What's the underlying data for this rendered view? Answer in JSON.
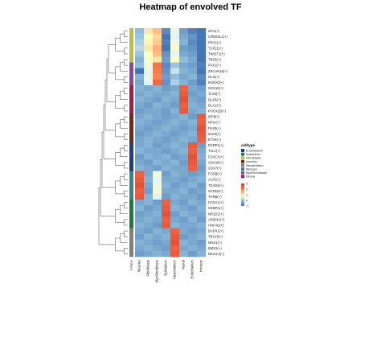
{
  "chart_data": {
    "type": "heatmap",
    "title": "Heatmap of envolved TF",
    "annotation_label": "celltype",
    "columns": [
      "Muscles",
      "Fibroblasts",
      "MyoFibroblasts",
      "Epithelium",
      "Mesothelium",
      "Neural",
      "Endothelium",
      "Immune"
    ],
    "rows": [
      "ZIC1(+)",
      "CREB3L1(+)",
      "PRX1(+)",
      "TCF21(+)",
      "TWIST1(+)",
      "TBX5(+)",
      "PAX1(+)",
      "ZSCAN16(+)",
      "GLI1(+)",
      "RUNX2(+)",
      "SOX10(+)",
      "TLX3(+)",
      "DLX5(+)",
      "DLX1(+)",
      "PHOX2B(+)",
      "IRF8(+)",
      "NFIA(+)",
      "PAX5(+)",
      "ELK3(+)",
      "ETV6(+)",
      "ESRP1(+)",
      "TAL1(+)",
      "FOXC1(+)",
      "SOX18(+)",
      "SOX7(+)",
      "FOSB(+)",
      "ALX1(+)",
      "TEAD3(+)",
      "SATB2(+)",
      "THRB(+)",
      "FOXA1(+)",
      "CEBPA(+)",
      "NR1D1(+)",
      "ARID3A(+)",
      "HNF4G(+)",
      "BARX1(+)",
      "TBX15(+)",
      "MNX1(+)",
      "EMX2(+)",
      "NKX3-2(+)"
    ],
    "row_celltype": [
      "Fibroblasts",
      "Fibroblasts",
      "Fibroblasts",
      "Fibroblasts",
      "Fibroblasts",
      "Fibroblasts",
      "MyoFibroblasts",
      "MyoFibroblasts",
      "MyoFibroblasts",
      "MyoFibroblasts",
      "Neural",
      "Neural",
      "Neural",
      "Neural",
      "Neural",
      "Immune",
      "Immune",
      "Immune",
      "Immune",
      "Immune",
      "Endothelium",
      "Endothelium",
      "Endothelium",
      "Endothelium",
      "Endothelium",
      "Muscles",
      "Muscles",
      "Muscles",
      "Muscles",
      "Muscles",
      "Epithelium",
      "Epithelium",
      "Epithelium",
      "Epithelium",
      "Epithelium",
      "Mesothelium",
      "Mesothelium",
      "Mesothelium",
      "Mesothelium",
      "Mesothelium"
    ],
    "values": [
      [
        -0.3,
        1.2,
        1.5,
        -0.8,
        0.5,
        -0.6,
        -0.9,
        -1.3
      ],
      [
        -0.2,
        1.0,
        1.3,
        -1.1,
        0.3,
        -0.5,
        -0.7,
        -1.2
      ],
      [
        -0.1,
        1.1,
        1.4,
        -0.9,
        0.6,
        -0.4,
        -0.8,
        -1.0
      ],
      [
        0.0,
        1.2,
        1.6,
        -1.2,
        0.8,
        -0.6,
        -0.7,
        -1.1
      ],
      [
        -0.2,
        1.0,
        1.5,
        -0.7,
        0.4,
        -0.5,
        -0.6,
        -1.2
      ],
      [
        -0.4,
        0.9,
        1.2,
        -0.6,
        1.0,
        -0.3,
        -0.5,
        -1.0
      ],
      [
        -0.3,
        0.6,
        2.2,
        -0.8,
        -0.2,
        -0.5,
        -0.6,
        -0.9
      ],
      [
        -1.0,
        0.4,
        2.1,
        -0.7,
        0.1,
        -0.4,
        -0.5,
        -1.2
      ],
      [
        -0.4,
        0.5,
        2.0,
        -0.6,
        -0.3,
        -0.5,
        -0.4,
        -0.8
      ],
      [
        -0.5,
        0.3,
        2.3,
        -0.7,
        -0.1,
        -0.4,
        -0.6,
        -0.9
      ],
      [
        -0.4,
        -0.5,
        -0.4,
        -0.6,
        -0.5,
        2.4,
        -0.5,
        -0.6
      ],
      [
        -0.5,
        -0.4,
        -0.5,
        -0.5,
        -0.4,
        2.5,
        -0.6,
        -0.5
      ],
      [
        -0.4,
        -0.5,
        -0.6,
        -0.4,
        -0.5,
        2.6,
        -0.5,
        -0.6
      ],
      [
        -0.5,
        -0.6,
        -0.4,
        -0.5,
        -0.6,
        2.4,
        -0.4,
        -0.5
      ],
      [
        -0.6,
        -0.5,
        -0.5,
        -0.6,
        -0.4,
        2.5,
        -0.5,
        -0.4
      ],
      [
        -0.5,
        -0.4,
        -0.5,
        -0.6,
        -0.5,
        -0.4,
        -0.6,
        2.5
      ],
      [
        -0.4,
        -0.5,
        -0.6,
        -0.5,
        -0.4,
        -0.5,
        -0.4,
        2.4
      ],
      [
        -0.5,
        -0.6,
        -0.5,
        -0.4,
        -0.5,
        -0.6,
        -0.5,
        2.6
      ],
      [
        -0.6,
        -0.5,
        -0.4,
        -0.5,
        -0.6,
        -0.5,
        -0.4,
        2.5
      ],
      [
        -0.5,
        -0.4,
        -0.5,
        -0.6,
        -0.5,
        -0.4,
        -0.5,
        2.4
      ],
      [
        -0.5,
        -0.4,
        -0.6,
        -0.5,
        -0.4,
        -0.5,
        2.5,
        -0.6
      ],
      [
        -0.4,
        -0.5,
        -0.5,
        -0.6,
        -0.5,
        -0.4,
        2.4,
        -0.5
      ],
      [
        -0.6,
        -0.4,
        -0.5,
        -0.4,
        -0.6,
        -0.5,
        2.6,
        -0.4
      ],
      [
        -0.5,
        -0.6,
        -0.4,
        -0.5,
        -0.4,
        -0.6,
        2.5,
        -0.5
      ],
      [
        -0.4,
        -0.5,
        -0.6,
        -0.4,
        -0.5,
        -0.5,
        2.4,
        -0.6
      ],
      [
        2.4,
        -0.5,
        0.6,
        -0.6,
        -0.4,
        -0.5,
        -0.6,
        -0.5
      ],
      [
        2.5,
        -0.4,
        0.4,
        -0.5,
        -0.5,
        -0.6,
        -0.5,
        -0.4
      ],
      [
        2.6,
        -0.5,
        0.5,
        -0.4,
        -0.6,
        -0.5,
        -0.4,
        -0.6
      ],
      [
        2.4,
        -0.6,
        0.7,
        -0.5,
        -0.5,
        -0.4,
        -0.6,
        -0.5
      ],
      [
        2.5,
        -0.4,
        0.3,
        -0.6,
        -0.4,
        -0.5,
        -0.5,
        -0.6
      ],
      [
        -0.5,
        -0.4,
        -0.6,
        2.4,
        -0.5,
        -0.6,
        -0.4,
        -0.5
      ],
      [
        -0.4,
        -0.6,
        -0.5,
        2.5,
        -0.4,
        -0.5,
        -0.6,
        -0.4
      ],
      [
        -0.6,
        -0.5,
        -0.4,
        2.6,
        -0.6,
        -0.4,
        -0.5,
        -0.5
      ],
      [
        -0.5,
        -0.4,
        -0.5,
        2.4,
        -0.5,
        -0.6,
        -0.4,
        -0.6
      ],
      [
        -0.4,
        -0.5,
        -0.6,
        2.5,
        -0.4,
        -0.5,
        -0.5,
        -0.4
      ],
      [
        -0.5,
        -0.6,
        -0.4,
        -0.5,
        2.4,
        -0.5,
        -0.6,
        -0.5
      ],
      [
        -0.6,
        -0.4,
        -0.5,
        -0.4,
        2.5,
        -0.6,
        -0.5,
        -0.4
      ],
      [
        -0.4,
        -0.5,
        -0.6,
        -0.5,
        2.6,
        -0.4,
        -0.5,
        -0.6
      ],
      [
        -0.5,
        -0.4,
        -0.5,
        -0.6,
        2.4,
        -0.5,
        -0.4,
        -0.5
      ],
      [
        -0.6,
        -0.5,
        -0.4,
        -0.5,
        2.5,
        -0.4,
        -0.6,
        -0.4
      ]
    ],
    "color_scale": {
      "min": -1,
      "max": 3,
      "low": "#4575b4",
      "mid": "#ffffbf",
      "high": "#d73027"
    },
    "color_ticks": [
      "3",
      "2",
      "1",
      "0",
      "-1"
    ],
    "legend": {
      "title": "celltype",
      "entries": [
        {
          "name": "Endothelium",
          "color": "#1f3a93"
        },
        {
          "name": "Epithelium",
          "color": "#1e7b3c"
        },
        {
          "name": "Fibroblasts",
          "color": "#b8c23a"
        },
        {
          "name": "Immune",
          "color": "#6b2d0d"
        },
        {
          "name": "Mesothelium",
          "color": "#7f7f7f"
        },
        {
          "name": "Muscles",
          "color": "#2e8b8b"
        },
        {
          "name": "MyoFibroblasts",
          "color": "#8e44ad"
        },
        {
          "name": "Neural",
          "color": "#b0164a"
        }
      ]
    },
    "column_celltype_colors": {
      "Muscles": "#2e8b8b",
      "Fibroblasts": "#b8c23a",
      "MyoFibroblasts": "#8e44ad",
      "Epithelium": "#1e7b3c",
      "Mesothelium": "#7f7f7f",
      "Neural": "#b0164a",
      "Endothelium": "#1f3a93",
      "Immune": "#6b2d0d"
    }
  }
}
